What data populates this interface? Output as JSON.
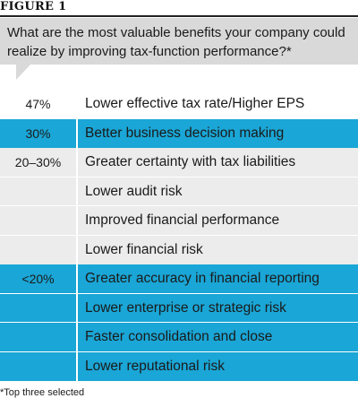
{
  "figure_label": "FIGURE 1",
  "question": "What are the most valuable benefits your company could realize by improving tax-function performance?*",
  "colors": {
    "question_bg": "#d9d9d9",
    "blue": "#1aa6d6",
    "grey": "#ececec",
    "white": "#ffffff"
  },
  "rows": [
    {
      "value": "47%",
      "label": "Lower effective tax rate/Higher EPS"
    },
    {
      "value": "30%",
      "label": "Better business decision making"
    },
    {
      "value": "20–30%",
      "label": "Greater certainty with tax liabilities"
    },
    {
      "value": "",
      "label": "Lower audit risk"
    },
    {
      "value": "",
      "label": "Improved financial performance"
    },
    {
      "value": "",
      "label": "Lower financial risk"
    },
    {
      "value": "<20%",
      "label": "Greater accuracy in financial reporting"
    },
    {
      "value": "",
      "label": "Lower enterprise or strategic risk"
    },
    {
      "value": "",
      "label": "Faster consolidation and close"
    },
    {
      "value": "",
      "label": "Lower reputational risk"
    }
  ],
  "footnote": "*Top three selected"
}
